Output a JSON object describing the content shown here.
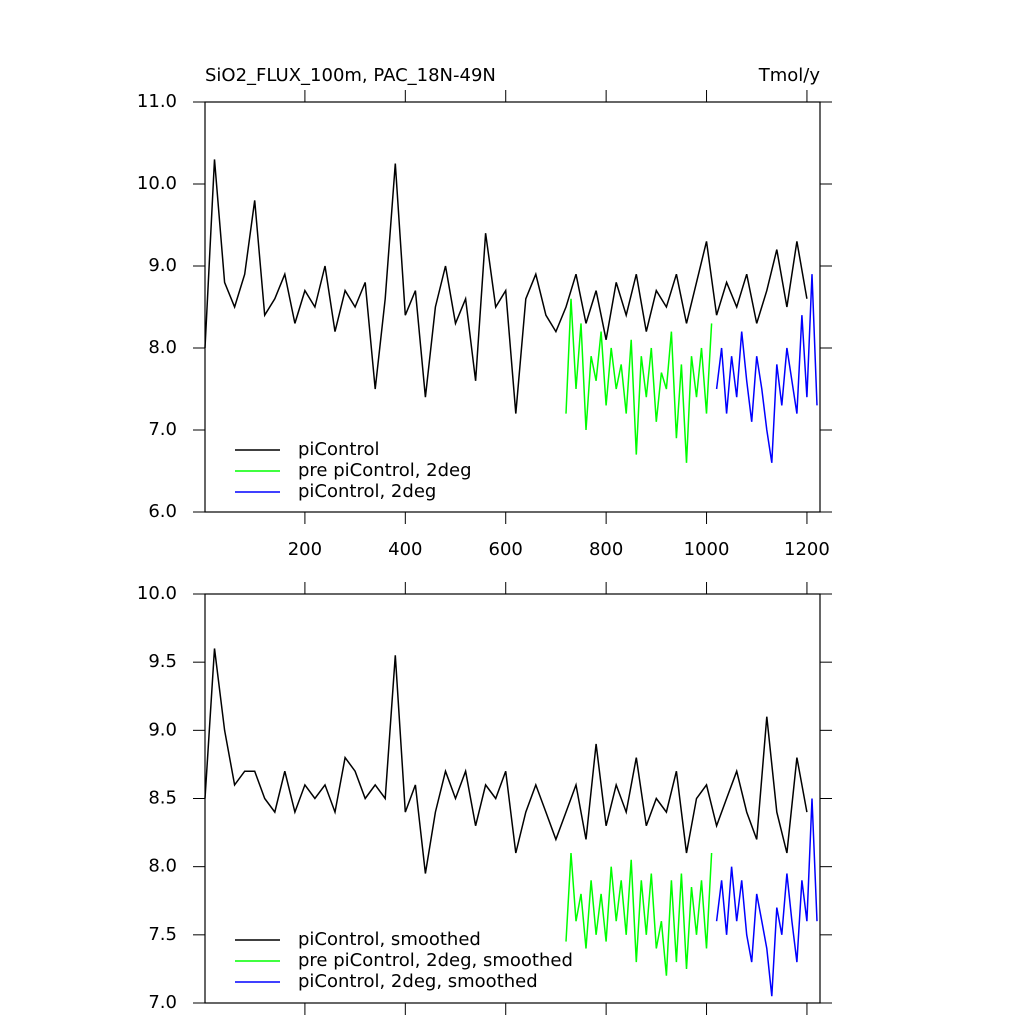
{
  "chart_data": [
    {
      "type": "line",
      "title": "SiO2_FLUX_100m, PAC_18N-49N",
      "title_right": "Tmol/y",
      "xlim": [
        1,
        1226
      ],
      "xticks": [
        200,
        400,
        600,
        800,
        1000,
        1200
      ],
      "show_xtick_labels": true,
      "ylim": [
        6,
        11
      ],
      "yticks": [
        {
          "value": 6,
          "label": "6.0"
        },
        {
          "value": 7,
          "label": "7.0"
        },
        {
          "value": 8,
          "label": "8.0"
        },
        {
          "value": 9,
          "label": "9.0"
        },
        {
          "value": 10,
          "label": "10.0"
        },
        {
          "value": 11,
          "label": "11.0"
        }
      ],
      "legend": "lower left",
      "series": [
        {
          "name": "piControl",
          "color": "#000000",
          "x": [
            1,
            20,
            40,
            60,
            80,
            100,
            120,
            140,
            160,
            180,
            200,
            220,
            240,
            260,
            280,
            300,
            320,
            340,
            360,
            380,
            400,
            420,
            440,
            460,
            480,
            500,
            520,
            540,
            560,
            580,
            600,
            620,
            640,
            660,
            680,
            700,
            720,
            740,
            760,
            780,
            800,
            820,
            840,
            860,
            880,
            900,
            920,
            940,
            960,
            980,
            1000,
            1020,
            1040,
            1060,
            1080,
            1100,
            1120,
            1140,
            1160,
            1180,
            1200
          ],
          "values": [
            8.0,
            10.3,
            8.8,
            8.5,
            8.9,
            9.8,
            8.4,
            8.6,
            8.9,
            8.3,
            8.7,
            8.5,
            9.0,
            8.2,
            8.7,
            8.5,
            8.8,
            7.5,
            8.6,
            10.25,
            8.4,
            8.7,
            7.4,
            8.5,
            9.0,
            8.3,
            8.6,
            7.6,
            9.4,
            8.5,
            8.7,
            7.2,
            8.6,
            8.9,
            8.4,
            8.2,
            8.5,
            8.9,
            8.3,
            8.7,
            8.1,
            8.8,
            8.4,
            8.9,
            8.2,
            8.7,
            8.5,
            8.9,
            8.3,
            8.8,
            9.3,
            8.4,
            8.8,
            8.5,
            8.9,
            8.3,
            8.7,
            9.2,
            8.5,
            9.3,
            8.6
          ]
        },
        {
          "name": "pre piControl, 2deg",
          "color": "#00ff00",
          "x": [
            720,
            730,
            740,
            750,
            760,
            770,
            780,
            790,
            800,
            810,
            820,
            830,
            840,
            850,
            860,
            870,
            880,
            890,
            900,
            910,
            920,
            930,
            940,
            950,
            960,
            970,
            980,
            990,
            1000,
            1010
          ],
          "values": [
            7.2,
            8.6,
            7.5,
            8.3,
            7.0,
            7.9,
            7.6,
            8.2,
            7.3,
            8.0,
            7.5,
            7.8,
            7.2,
            8.1,
            6.7,
            7.9,
            7.4,
            8.0,
            7.1,
            7.7,
            7.5,
            8.2,
            6.9,
            7.8,
            6.6,
            7.9,
            7.4,
            8.0,
            7.2,
            8.3
          ]
        },
        {
          "name": "piControl, 2deg",
          "color": "#0000ff",
          "x": [
            1020,
            1030,
            1040,
            1050,
            1060,
            1070,
            1080,
            1090,
            1100,
            1110,
            1120,
            1130,
            1140,
            1150,
            1160,
            1170,
            1180,
            1190,
            1200,
            1210,
            1220
          ],
          "values": [
            7.5,
            8.0,
            7.2,
            7.9,
            7.4,
            8.2,
            7.6,
            7.1,
            7.9,
            7.5,
            7.0,
            6.6,
            7.8,
            7.3,
            8.0,
            7.6,
            7.2,
            8.4,
            7.4,
            8.9,
            7.3
          ]
        }
      ]
    },
    {
      "type": "line",
      "xlim": [
        1,
        1226
      ],
      "xticks": [
        200,
        400,
        600,
        800,
        1000,
        1200
      ],
      "show_xtick_labels": false,
      "ylim": [
        7,
        10
      ],
      "yticks": [
        {
          "value": 7,
          "label": "7.0"
        },
        {
          "value": 7.5,
          "label": "7.5"
        },
        {
          "value": 8,
          "label": "8.0"
        },
        {
          "value": 8.5,
          "label": "8.5"
        },
        {
          "value": 9,
          "label": "9.0"
        },
        {
          "value": 9.5,
          "label": "9.5"
        },
        {
          "value": 10,
          "label": "10.0"
        }
      ],
      "legend": "lower left",
      "series": [
        {
          "name": "piControl, smoothed",
          "color": "#000000",
          "x": [
            1,
            20,
            40,
            60,
            80,
            100,
            120,
            140,
            160,
            180,
            200,
            220,
            240,
            260,
            280,
            300,
            320,
            340,
            360,
            380,
            400,
            420,
            440,
            460,
            480,
            500,
            520,
            540,
            560,
            580,
            600,
            620,
            640,
            660,
            680,
            700,
            720,
            740,
            760,
            780,
            800,
            820,
            840,
            860,
            880,
            900,
            920,
            940,
            960,
            980,
            1000,
            1020,
            1040,
            1060,
            1080,
            1100,
            1120,
            1140,
            1160,
            1180,
            1200
          ],
          "values": [
            8.5,
            9.6,
            9.0,
            8.6,
            8.7,
            8.7,
            8.5,
            8.4,
            8.7,
            8.4,
            8.6,
            8.5,
            8.6,
            8.4,
            8.8,
            8.7,
            8.5,
            8.6,
            8.5,
            9.55,
            8.4,
            8.6,
            7.95,
            8.4,
            8.7,
            8.5,
            8.7,
            8.3,
            8.6,
            8.5,
            8.7,
            8.1,
            8.4,
            8.6,
            8.4,
            8.2,
            8.4,
            8.6,
            8.2,
            8.9,
            8.3,
            8.6,
            8.4,
            8.8,
            8.3,
            8.5,
            8.4,
            8.7,
            8.1,
            8.5,
            8.6,
            8.3,
            8.5,
            8.7,
            8.4,
            8.2,
            9.1,
            8.4,
            8.1,
            8.8,
            8.4
          ]
        },
        {
          "name": "pre piControl, 2deg, smoothed",
          "color": "#00ff00",
          "x": [
            720,
            730,
            740,
            750,
            760,
            770,
            780,
            790,
            800,
            810,
            820,
            830,
            840,
            850,
            860,
            870,
            880,
            890,
            900,
            910,
            920,
            930,
            940,
            950,
            960,
            970,
            980,
            990,
            1000,
            1010
          ],
          "values": [
            7.45,
            8.1,
            7.6,
            7.8,
            7.4,
            7.9,
            7.5,
            7.8,
            7.45,
            8.0,
            7.6,
            7.9,
            7.5,
            8.05,
            7.3,
            7.9,
            7.5,
            7.95,
            7.4,
            7.6,
            7.2,
            7.9,
            7.3,
            7.95,
            7.25,
            7.85,
            7.5,
            7.9,
            7.4,
            8.1
          ]
        },
        {
          "name": "piControl, 2deg, smoothed",
          "color": "#0000ff",
          "x": [
            1020,
            1030,
            1040,
            1050,
            1060,
            1070,
            1080,
            1090,
            1100,
            1110,
            1120,
            1130,
            1140,
            1150,
            1160,
            1170,
            1180,
            1190,
            1200,
            1210,
            1220
          ],
          "values": [
            7.6,
            7.9,
            7.5,
            8.0,
            7.6,
            7.9,
            7.5,
            7.3,
            7.8,
            7.6,
            7.4,
            7.05,
            7.7,
            7.5,
            7.95,
            7.6,
            7.3,
            7.9,
            7.6,
            8.5,
            7.6
          ]
        }
      ]
    }
  ]
}
